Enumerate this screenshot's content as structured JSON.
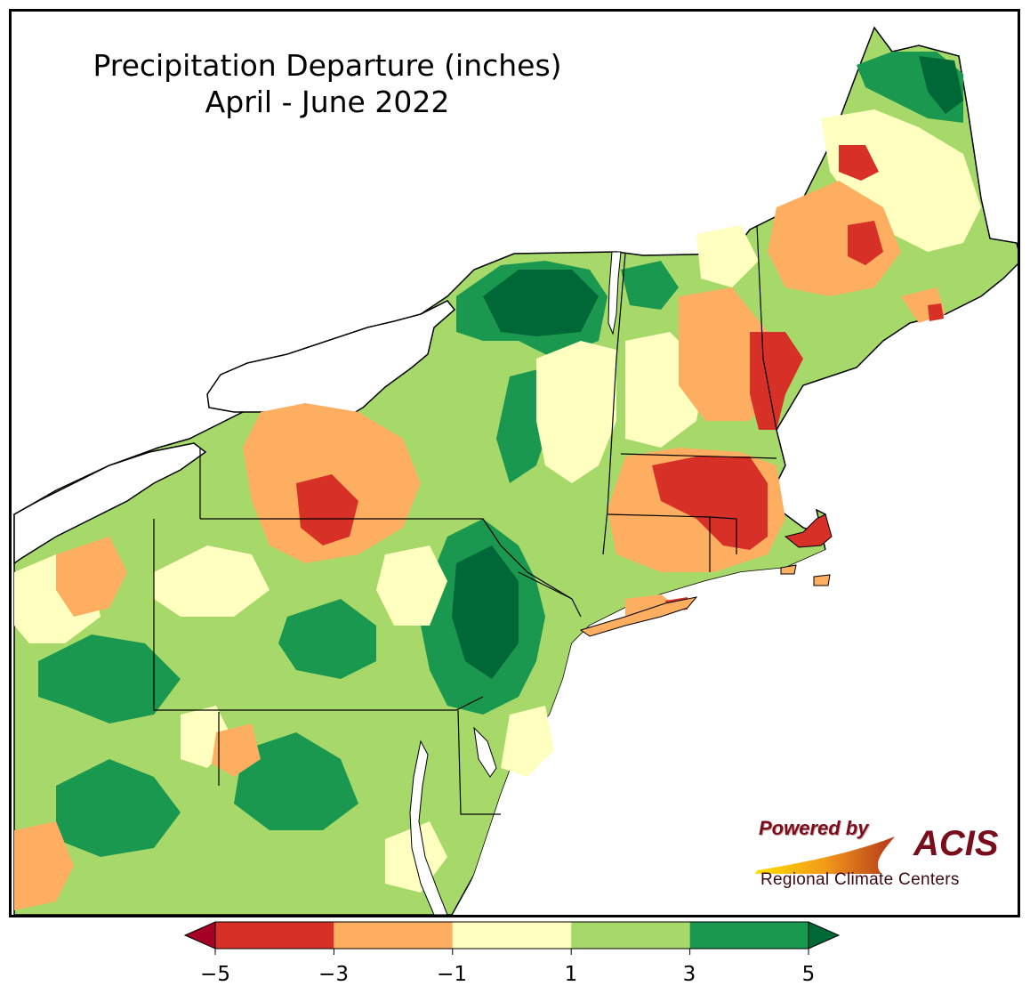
{
  "title": {
    "line1": "Precipitation Departure (inches)",
    "line2": "April - June 2022"
  },
  "logo": {
    "powered_by": "Powered by",
    "brand": "ACIS",
    "tagline": "Regional Climate Centers"
  },
  "legend": {
    "ticks": [
      "−5",
      "−3",
      "−1",
      "1",
      "3",
      "5"
    ],
    "bins": [
      {
        "range": "< -5",
        "color": "#a50026"
      },
      {
        "range": "-5 to -3",
        "color": "#d73027"
      },
      {
        "range": "-3 to -1",
        "color": "#fdae61"
      },
      {
        "range": "-1 to 1",
        "color": "#ffffbf"
      },
      {
        "range": "1 to 3",
        "color": "#a6d96a"
      },
      {
        "range": "3 to 5",
        "color": "#1a9850"
      },
      {
        "range": "> 5",
        "color": "#006837"
      }
    ]
  }
}
